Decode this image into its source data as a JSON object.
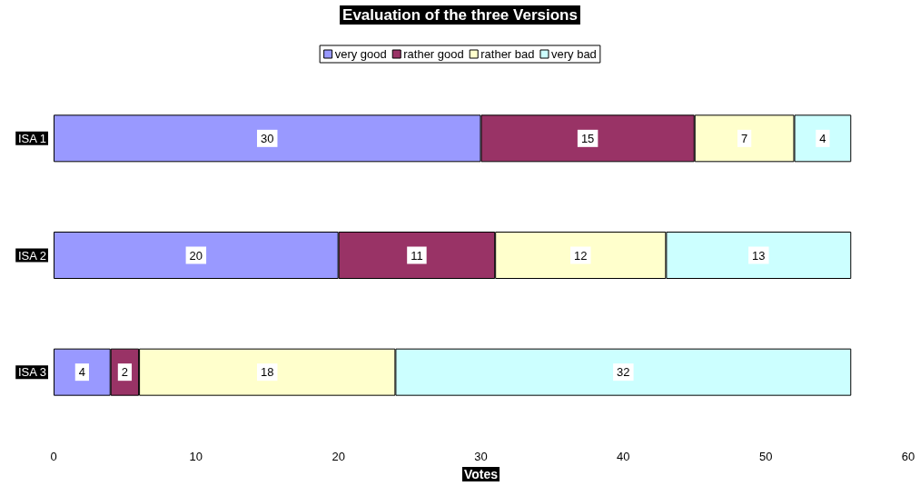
{
  "chart_data": {
    "type": "bar",
    "title": "Evaluation of the three Versions",
    "xlabel": "Votes",
    "orientation": "horizontal",
    "stacked": true,
    "categories": [
      "ISA 1",
      "ISA 2",
      "ISA 3"
    ],
    "series": [
      {
        "name": "very good",
        "color": "#9999ff",
        "values": [
          30,
          20,
          4
        ]
      },
      {
        "name": "rather good",
        "color": "#993366",
        "values": [
          15,
          11,
          2
        ]
      },
      {
        "name": "rather bad",
        "color": "#ffffcc",
        "values": [
          7,
          12,
          18
        ]
      },
      {
        "name": "very bad",
        "color": "#ccffff",
        "values": [
          4,
          13,
          32
        ]
      }
    ],
    "xlim": [
      0,
      60
    ],
    "xticks": [
      0,
      10,
      20,
      30,
      40,
      50,
      60
    ],
    "grid": false,
    "legend": "top",
    "data_labels": true
  }
}
